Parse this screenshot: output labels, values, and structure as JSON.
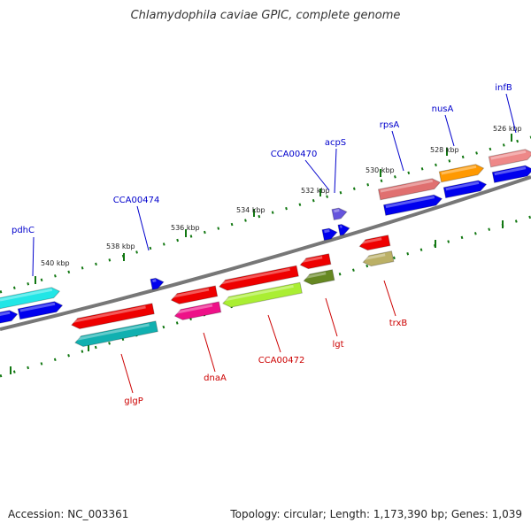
{
  "title": "Chlamydophila caviae GPIC, complete genome",
  "footer": {
    "accession": "Accession: NC_003361",
    "summary": "Topology: circular; Length: 1,173,390 bp; Genes: 1,039"
  },
  "scale_labels": [
    "540 kbp",
    "538 kbp",
    "536 kbp",
    "534 kbp",
    "532 kbp",
    "530 kbp",
    "528 kbp",
    "526 kbp"
  ],
  "top_gene_labels": [
    "pdhC",
    "CCA00474",
    "CCA00470",
    "acpS",
    "rpsA",
    "nusA",
    "infB"
  ],
  "bottom_gene_labels": [
    "glgP",
    "dnaA",
    "CCA00472",
    "lgt",
    "trxB"
  ],
  "colors": {
    "backbone": "#777777",
    "forward_strand": "#0000ee",
    "reverse_strand": "#ee0000",
    "tick": "#117711"
  }
}
